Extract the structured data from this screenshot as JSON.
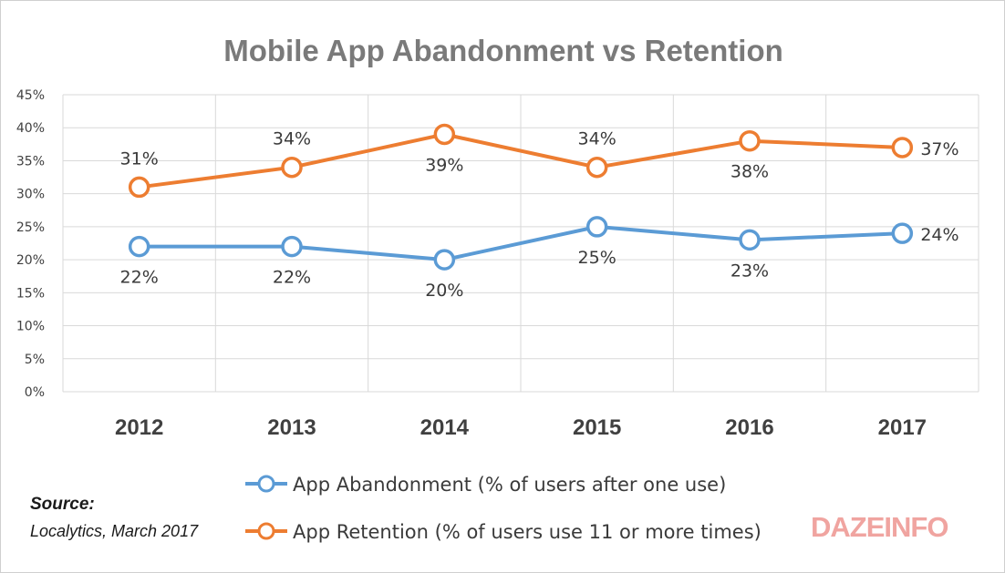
{
  "chart_data": {
    "type": "line",
    "title": "Mobile App Abandonment vs Retention",
    "categories": [
      "2012",
      "2013",
      "2014",
      "2015",
      "2016",
      "2017"
    ],
    "y_ticks": [
      "0%",
      "5%",
      "10%",
      "15%",
      "20%",
      "25%",
      "30%",
      "35%",
      "40%",
      "45%"
    ],
    "ylim": [
      0,
      45
    ],
    "grid": true,
    "legend_position": "bottom",
    "series": [
      {
        "name": "App Abandonment (% of users after one use)",
        "values": [
          22,
          22,
          20,
          25,
          23,
          24
        ],
        "labels": [
          "22%",
          "22%",
          "20%",
          "25%",
          "23%",
          "24%"
        ],
        "color": "#5b9bd5"
      },
      {
        "name": "App Retention (% of users use 11 or more times)",
        "values": [
          31,
          34,
          39,
          34,
          38,
          37
        ],
        "labels": [
          "31%",
          "34%",
          "39%",
          "34%",
          "38%",
          "37%"
        ],
        "color": "#ed7d31"
      }
    ]
  },
  "source": {
    "label": "Source:",
    "text": "Localytics, March 2017"
  },
  "logo": {
    "text": "DAZEINFO",
    "color": "#f0a4a0"
  }
}
